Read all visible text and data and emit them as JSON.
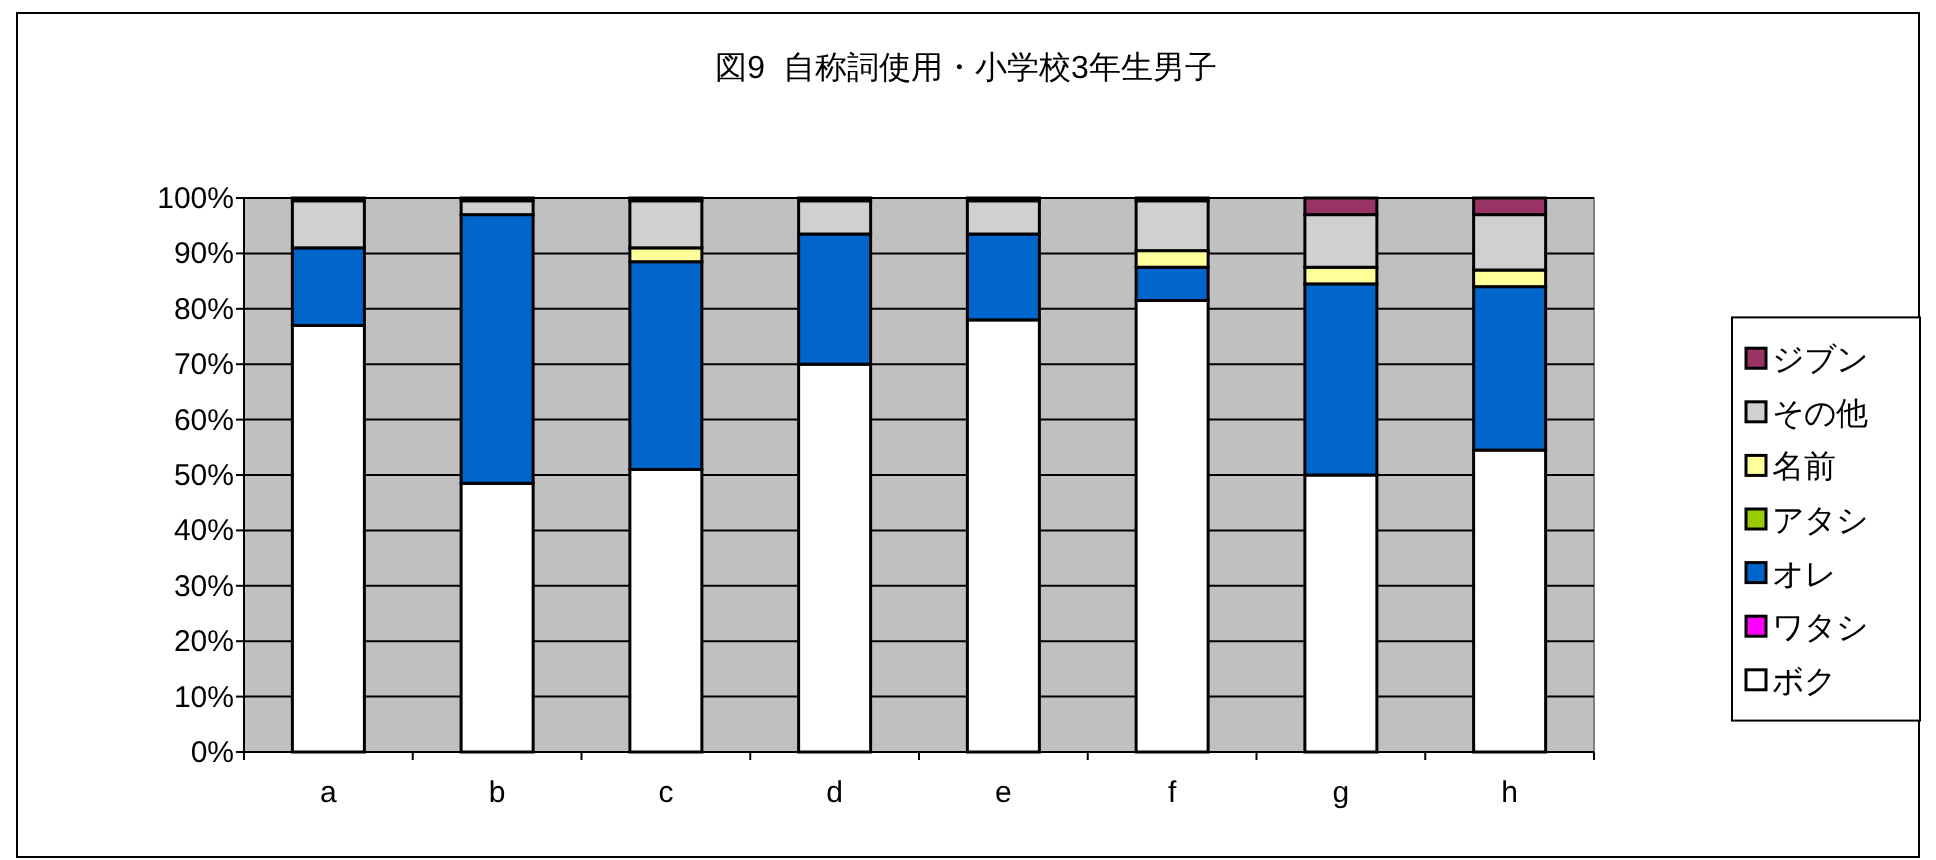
{
  "chart_data": {
    "type": "bar",
    "title": "図9  自称詞使用・小学校3年生男子",
    "categories": [
      "a",
      "b",
      "c",
      "d",
      "e",
      "f",
      "g",
      "h"
    ],
    "stacked": true,
    "series": [
      {
        "name": "ボク",
        "color": "#ffffff",
        "values": [
          77,
          48.5,
          51,
          70,
          78,
          81.5,
          50,
          54.5
        ]
      },
      {
        "name": "ワタシ",
        "color": "#ff00ff",
        "values": [
          0,
          0,
          0,
          0,
          0,
          0,
          0,
          0
        ]
      },
      {
        "name": "オレ",
        "color": "#0066cc",
        "values": [
          14,
          48.5,
          37.5,
          23.5,
          15.5,
          6,
          34.5,
          29.5
        ]
      },
      {
        "name": "アタシ",
        "color": "#99cc00",
        "values": [
          0,
          0,
          0,
          0,
          0,
          0,
          0,
          0
        ]
      },
      {
        "name": "名前",
        "color": "#ffff99",
        "values": [
          0,
          0,
          2.5,
          0,
          0,
          3,
          3,
          3
        ]
      },
      {
        "name": "その他",
        "color": "#d0d0d0",
        "values": [
          8.5,
          2.5,
          8.5,
          6,
          6,
          9,
          9.5,
          10
        ]
      },
      {
        "name": "ジブン",
        "color": "#993366",
        "values": [
          0.5,
          0.5,
          0.5,
          0.5,
          0.5,
          0.5,
          3,
          3
        ]
      }
    ],
    "ylim": [
      0,
      100
    ],
    "yticks": [
      {
        "value": 0,
        "label": "0%"
      },
      {
        "value": 10,
        "label": "10%"
      },
      {
        "value": 20,
        "label": "20%"
      },
      {
        "value": 30,
        "label": "30%"
      },
      {
        "value": 40,
        "label": "40%"
      },
      {
        "value": 50,
        "label": "50%"
      },
      {
        "value": 60,
        "label": "60%"
      },
      {
        "value": 70,
        "label": "70%"
      },
      {
        "value": 80,
        "label": "80%"
      },
      {
        "value": 90,
        "label": "90%"
      },
      {
        "value": 100,
        "label": "100%"
      }
    ],
    "grid": "y",
    "legend": "right"
  }
}
